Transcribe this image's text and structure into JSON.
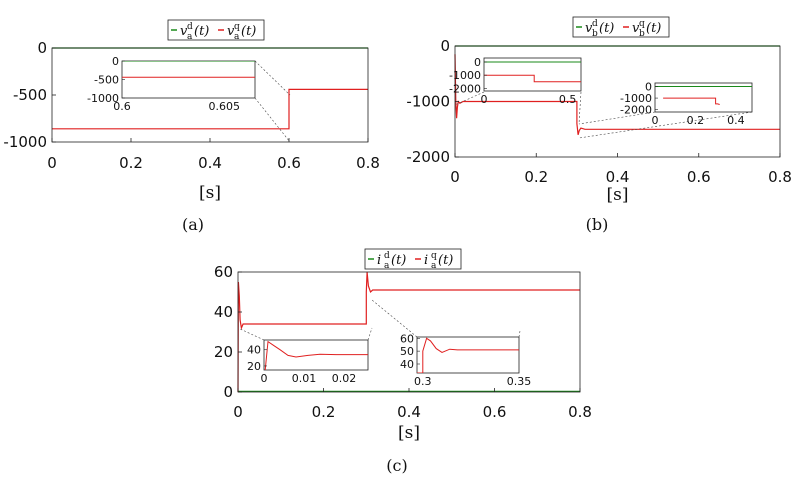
{
  "colors": {
    "d": "#1a8a1a",
    "q": "#e02020"
  },
  "chart_data": [
    {
      "type": "line",
      "caption": "(a)",
      "xlabel": "[s]",
      "xlim": [
        0,
        0.8
      ],
      "ylim": [
        -1000,
        0
      ],
      "xticks": [
        "0",
        "0.2",
        "0.4",
        "0.6",
        "0.8"
      ],
      "yticks": [
        "0",
        "-500",
        "-1000"
      ],
      "legend": [
        {
          "symbol": "v",
          "sup": "d",
          "sub": "a",
          "arg": "(t)"
        },
        {
          "symbol": "v",
          "sup": "q",
          "sub": "a",
          "arg": "(t)"
        }
      ],
      "series": [
        {
          "x": [
            0,
            0.8
          ],
          "y": [
            0,
            0
          ]
        },
        {
          "x": [
            0,
            0.6,
            0.6,
            0.8
          ],
          "y": [
            -860,
            -860,
            -440,
            -440
          ]
        }
      ],
      "insets": [
        {
          "xlim": [
            0.6,
            0.6065
          ],
          "ylim": [
            -1000,
            0
          ],
          "xticks": [
            "0.6",
            "0.605"
          ],
          "yticks": [
            "0",
            "-500",
            "-1000"
          ],
          "series": [
            {
              "x": [
                0.6,
                0.6065
              ],
              "y": [
                0,
                0
              ]
            },
            {
              "x": [
                0.6,
                0.6065
              ],
              "y": [
                -440,
                -440
              ]
            }
          ]
        }
      ]
    },
    {
      "type": "line",
      "caption": "(b)",
      "xlabel": "[s]",
      "xlim": [
        0,
        0.8
      ],
      "ylim": [
        -2000,
        0
      ],
      "xticks": [
        "0",
        "0.2",
        "0.4",
        "0.6",
        "0.8"
      ],
      "yticks": [
        "0",
        "-1000",
        "-2000"
      ],
      "legend": [
        {
          "symbol": "v",
          "sup": "d",
          "sub": "b",
          "arg": "(t)"
        },
        {
          "symbol": "v",
          "sup": "q",
          "sub": "b",
          "arg": "(t)"
        }
      ],
      "series": [
        {
          "x": [
            0,
            0.8
          ],
          "y": [
            0,
            0
          ]
        },
        {
          "x": [
            0,
            0.002,
            0.004,
            0.006,
            0.008,
            0.012,
            0.02,
            0.3,
            0.3,
            0.303,
            0.306,
            0.31,
            0.32,
            0.8
          ],
          "y": [
            -150,
            -1000,
            -1300,
            -1100,
            -1000,
            -1030,
            -1000,
            -1000,
            -1400,
            -1600,
            -1520,
            -1480,
            -1500,
            -1500
          ]
        }
      ],
      "insets": [
        {
          "xlim": [
            0,
            0.58
          ],
          "ylim": [
            -2200,
            300
          ],
          "xticks": [
            "0",
            "0.5"
          ],
          "yticks": [
            "0",
            "-1000",
            "-2000"
          ],
          "series": [
            {
              "x": [
                0,
                0.58
              ],
              "y": [
                0,
                0
              ]
            },
            {
              "x": [
                0,
                0.3,
                0.3,
                0.58
              ],
              "y": [
                -1000,
                -1000,
                -1500,
                -1500
              ]
            }
          ]
        },
        {
          "xlim": [
            0,
            0.48
          ],
          "ylim": [
            -2200,
            300
          ],
          "xticks": [
            "0",
            "0.2",
            "0.4"
          ],
          "yticks": [
            "0",
            "-1000",
            "-2000"
          ],
          "series": [
            {
              "x": [
                0,
                0.48
              ],
              "y": [
                0,
                0
              ]
            },
            {
              "x": [
                0.04,
                0.3,
                0.3,
                0.31,
                0.32
              ],
              "y": [
                -1000,
                -1000,
                -1500,
                -1500,
                -1550
              ]
            }
          ]
        }
      ]
    },
    {
      "type": "line",
      "caption": "(c)",
      "xlabel": "[s]",
      "xlim": [
        0,
        0.8
      ],
      "ylim": [
        0,
        60
      ],
      "xticks": [
        "0",
        "0.2",
        "0.4",
        "0.6",
        "0.8"
      ],
      "yticks": [
        "0",
        "20",
        "40",
        "60"
      ],
      "legend": [
        {
          "symbol": "i",
          "sup": "d",
          "sub": "a",
          "arg": "(t)"
        },
        {
          "symbol": "i",
          "sup": "q",
          "sub": "a",
          "arg": "(t)"
        }
      ],
      "series": [
        {
          "x": [
            0,
            0.8
          ],
          "y": [
            0.3,
            0.3
          ]
        },
        {
          "x": [
            0,
            0.001,
            0.003,
            0.005,
            0.008,
            0.012,
            0.02,
            0.3,
            0.3,
            0.302,
            0.305,
            0.31,
            0.315,
            0.8
          ],
          "y": [
            0,
            55,
            48,
            36,
            32,
            34,
            34,
            34,
            50,
            60,
            53,
            50,
            51,
            51
          ]
        }
      ],
      "insets": [
        {
          "xlim": [
            0,
            0.026
          ],
          "ylim": [
            15,
            52
          ],
          "xticks": [
            "0",
            "0.01",
            "0.02"
          ],
          "yticks": [
            "20",
            "40"
          ],
          "series": [
            {
              "x": [
                0,
                0.001,
                0.0025,
                0.004,
                0.006,
                0.008,
                0.011,
                0.014,
                0.018,
                0.026
              ],
              "y": [
                0,
                50,
                45,
                40,
                33,
                31,
                33,
                34.5,
                34,
                34
              ]
            }
          ]
        },
        {
          "xlim": [
            0.297,
            0.35
          ],
          "ylim": [
            33,
            61
          ],
          "xticks": [
            "0.3",
            "0.35"
          ],
          "yticks": [
            "40",
            "50",
            "60"
          ],
          "series": [
            {
              "x": [
                0.297,
                0.3,
                0.3,
                0.302,
                0.304,
                0.307,
                0.31,
                0.314,
                0.318,
                0.35
              ],
              "y": [
                33,
                33,
                50,
                60,
                58,
                52,
                49,
                51.5,
                51,
                51
              ]
            }
          ]
        }
      ]
    }
  ]
}
